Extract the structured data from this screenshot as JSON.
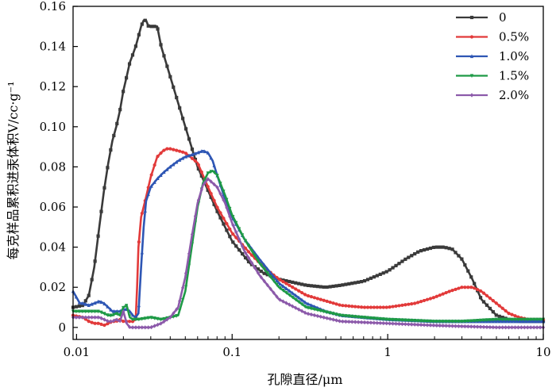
{
  "chart_data": {
    "type": "line",
    "title": "",
    "xlabel": "孔隙直径/μm",
    "ylabel": "每克样品累积进汞体积V/cc·g⁻¹",
    "xscale": "log",
    "xlim": [
      0.0095,
      10
    ],
    "ylim": [
      -0.006,
      0.16
    ],
    "x_ticks": [
      {
        "value": 0.01,
        "label": "0.01"
      },
      {
        "value": 0.1,
        "label": "0.1"
      },
      {
        "value": 1,
        "label": "1"
      },
      {
        "value": 10,
        "label": "10"
      }
    ],
    "y_ticks": [
      {
        "value": 0,
        "label": "0"
      },
      {
        "value": 0.02,
        "label": "0.02"
      },
      {
        "value": 0.04,
        "label": "0.04"
      },
      {
        "value": 0.06,
        "label": "0.06"
      },
      {
        "value": 0.08,
        "label": "0.08"
      },
      {
        "value": 0.1,
        "label": "0.10"
      },
      {
        "value": 0.12,
        "label": "0.12"
      },
      {
        "value": 0.14,
        "label": "0.14"
      },
      {
        "value": 0.16,
        "label": "0.16"
      }
    ],
    "legend_position": "top-right",
    "series": [
      {
        "name": "0",
        "color": "#3a3a3a",
        "marker": "square",
        "x": [
          0.0095,
          0.011,
          0.012,
          0.013,
          0.014,
          0.015,
          0.016,
          0.017,
          0.018,
          0.019,
          0.02,
          0.021,
          0.022,
          0.023,
          0.024,
          0.025,
          0.026,
          0.027,
          0.028,
          0.029,
          0.03,
          0.033,
          0.035,
          0.04,
          0.05,
          0.06,
          0.08,
          0.1,
          0.13,
          0.16,
          0.2,
          0.3,
          0.4,
          0.5,
          0.7,
          1.0,
          1.3,
          1.6,
          2.0,
          2.3,
          2.6,
          3.0,
          3.5,
          4.0,
          5.0,
          6.0,
          7.0,
          8.0,
          10.0
        ],
        "y": [
          0.01,
          0.011,
          0.016,
          0.03,
          0.05,
          0.068,
          0.082,
          0.093,
          0.1,
          0.108,
          0.118,
          0.125,
          0.132,
          0.136,
          0.14,
          0.145,
          0.15,
          0.153,
          0.153,
          0.15,
          0.15,
          0.15,
          0.14,
          0.125,
          0.1,
          0.08,
          0.058,
          0.043,
          0.032,
          0.027,
          0.024,
          0.021,
          0.02,
          0.021,
          0.023,
          0.028,
          0.034,
          0.038,
          0.04,
          0.04,
          0.039,
          0.034,
          0.024,
          0.014,
          0.006,
          0.004,
          0.003,
          0.003,
          0.003
        ]
      },
      {
        "name": "0.5%",
        "color": "#e23a3a",
        "marker": "circle",
        "x": [
          0.0095,
          0.011,
          0.012,
          0.013,
          0.014,
          0.015,
          0.016,
          0.017,
          0.018,
          0.019,
          0.02,
          0.021,
          0.022,
          0.023,
          0.024,
          0.0245,
          0.025,
          0.026,
          0.028,
          0.03,
          0.033,
          0.036,
          0.038,
          0.04,
          0.045,
          0.05,
          0.06,
          0.07,
          0.08,
          0.1,
          0.13,
          0.16,
          0.2,
          0.3,
          0.5,
          0.7,
          1.0,
          1.5,
          2.0,
          2.5,
          3.0,
          3.5,
          4.0,
          5.0,
          6.0,
          7.0,
          8.0,
          10.0
        ],
        "y": [
          0.006,
          0.005,
          0.003,
          0.002,
          0.002,
          0.001,
          0.002,
          0.003,
          0.003,
          0.004,
          0.003,
          0.003,
          0.003,
          0.003,
          0.004,
          0.02,
          0.04,
          0.055,
          0.065,
          0.075,
          0.085,
          0.088,
          0.089,
          0.089,
          0.088,
          0.087,
          0.082,
          0.07,
          0.06,
          0.047,
          0.037,
          0.03,
          0.024,
          0.016,
          0.011,
          0.01,
          0.01,
          0.012,
          0.015,
          0.018,
          0.02,
          0.02,
          0.018,
          0.012,
          0.007,
          0.005,
          0.004,
          0.004
        ]
      },
      {
        "name": "1.0%",
        "color": "#2e56b4",
        "marker": "triangle",
        "x": [
          0.0095,
          0.0105,
          0.011,
          0.012,
          0.013,
          0.014,
          0.015,
          0.016,
          0.017,
          0.018,
          0.019,
          0.02,
          0.021,
          0.022,
          0.023,
          0.024,
          0.025,
          0.026,
          0.027,
          0.028,
          0.03,
          0.033,
          0.036,
          0.04,
          0.045,
          0.05,
          0.055,
          0.06,
          0.065,
          0.07,
          0.075,
          0.08,
          0.09,
          0.1,
          0.12,
          0.15,
          0.2,
          0.3,
          0.4,
          0.5,
          0.7,
          1.0,
          2.0,
          3.0,
          5.0,
          7.0,
          10.0
        ],
        "y": [
          0.018,
          0.012,
          0.012,
          0.011,
          0.012,
          0.013,
          0.012,
          0.01,
          0.008,
          0.008,
          0.008,
          0.009,
          0.009,
          0.008,
          0.006,
          0.005,
          0.007,
          0.03,
          0.05,
          0.063,
          0.07,
          0.074,
          0.077,
          0.08,
          0.083,
          0.085,
          0.086,
          0.087,
          0.088,
          0.087,
          0.083,
          0.076,
          0.064,
          0.055,
          0.044,
          0.034,
          0.022,
          0.012,
          0.008,
          0.006,
          0.005,
          0.004,
          0.003,
          0.003,
          0.003,
          0.003,
          0.003
        ]
      },
      {
        "name": "1.5%",
        "color": "#1e9a46",
        "marker": "triangle-down",
        "x": [
          0.0095,
          0.011,
          0.012,
          0.013,
          0.014,
          0.015,
          0.016,
          0.017,
          0.018,
          0.019,
          0.02,
          0.021,
          0.022,
          0.023,
          0.025,
          0.03,
          0.035,
          0.04,
          0.045,
          0.05,
          0.055,
          0.06,
          0.065,
          0.07,
          0.075,
          0.08,
          0.09,
          0.1,
          0.12,
          0.15,
          0.2,
          0.3,
          0.5,
          0.7,
          1.0,
          2.0,
          3.0,
          5.0,
          7.0,
          10.0
        ],
        "y": [
          0.008,
          0.008,
          0.008,
          0.008,
          0.008,
          0.007,
          0.006,
          0.006,
          0.007,
          0.006,
          0.01,
          0.011,
          0.005,
          0.004,
          0.004,
          0.005,
          0.004,
          0.005,
          0.006,
          0.018,
          0.04,
          0.06,
          0.072,
          0.077,
          0.078,
          0.076,
          0.066,
          0.056,
          0.044,
          0.032,
          0.02,
          0.01,
          0.006,
          0.005,
          0.004,
          0.003,
          0.003,
          0.004,
          0.004,
          0.004
        ]
      },
      {
        "name": "2.0%",
        "color": "#8c5aaa",
        "marker": "diamond",
        "x": [
          0.0095,
          0.011,
          0.012,
          0.013,
          0.014,
          0.015,
          0.016,
          0.017,
          0.018,
          0.019,
          0.02,
          0.021,
          0.022,
          0.025,
          0.03,
          0.035,
          0.04,
          0.045,
          0.05,
          0.055,
          0.06,
          0.065,
          0.07,
          0.08,
          0.09,
          0.1,
          0.12,
          0.15,
          0.2,
          0.3,
          0.5,
          1.0,
          2.0,
          5.0,
          10.0
        ],
        "y": [
          0.005,
          0.005,
          0.005,
          0.005,
          0.005,
          0.004,
          0.003,
          0.003,
          0.004,
          0.003,
          0.008,
          0.002,
          0.0,
          0.0,
          0.0,
          0.002,
          0.005,
          0.01,
          0.025,
          0.045,
          0.062,
          0.071,
          0.074,
          0.07,
          0.062,
          0.052,
          0.038,
          0.026,
          0.014,
          0.007,
          0.003,
          0.002,
          0.001,
          0.0,
          0.0
        ]
      }
    ]
  }
}
